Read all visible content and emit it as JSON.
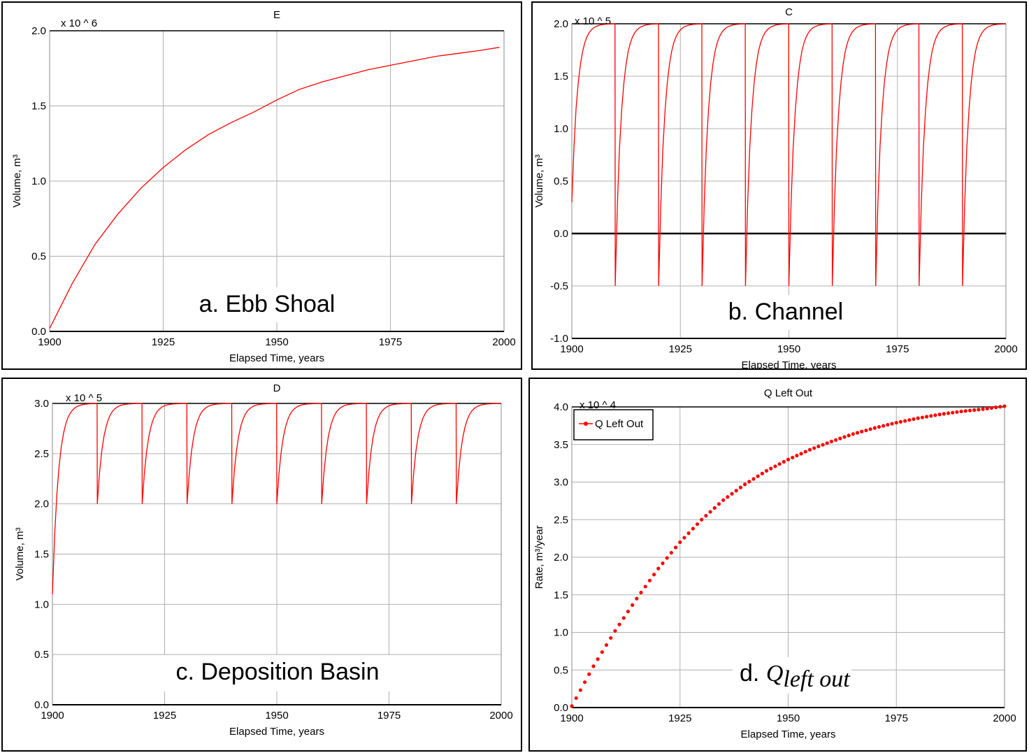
{
  "charts": [
    {
      "id": "a",
      "title": "E",
      "multiplier": "x 10 ^ 6",
      "xlabel": "Elapsed Time, years",
      "ylabel": "Volume, m³",
      "caption": "a. Ebb Shoal",
      "color": "#ff0000",
      "chart_data": {
        "type": "line",
        "title": "E",
        "xlabel": "Elapsed Time, years",
        "ylabel": "Volume, m³",
        "xlim": [
          1900,
          2000
        ],
        "ylim": [
          0.0,
          2.0
        ],
        "xticks": [
          "1900",
          "1925",
          "1950",
          "1975",
          "2000"
        ],
        "yticks": [
          "0.0",
          "0.5",
          "1.0",
          "1.5",
          "2.0"
        ],
        "grid": true,
        "x": [
          1900,
          1905,
          1910,
          1915,
          1920,
          1925,
          1930,
          1935,
          1940,
          1945,
          1950,
          1955,
          1960,
          1965,
          1970,
          1975,
          1980,
          1985,
          1990,
          1995,
          1999
        ],
        "series": [
          {
            "values": [
              0.02,
              0.32,
              0.58,
              0.78,
              0.95,
              1.09,
              1.21,
              1.31,
              1.39,
              1.46,
              1.54,
              1.61,
              1.66,
              1.7,
              1.74,
              1.77,
              1.8,
              1.83,
              1.85,
              1.87,
              1.89
            ]
          }
        ]
      }
    },
    {
      "id": "b",
      "title": "C",
      "multiplier": "x 10 ^ 5",
      "xlabel": "Elapsed Time, years",
      "ylabel": "Volume, m³",
      "caption": "b. Channel",
      "color": "#ff0000",
      "chart_data": {
        "type": "line",
        "title": "C",
        "xlabel": "Elapsed Time, years",
        "ylabel": "Volume, m³",
        "xlim": [
          1900,
          2000
        ],
        "ylim": [
          -1.0,
          2.0
        ],
        "xticks": [
          "1900",
          "1925",
          "1950",
          "1975",
          "2000"
        ],
        "yticks": [
          "-1.0",
          "-0.5",
          "0.0",
          "0.5",
          "1.0",
          "1.5",
          "2.0"
        ],
        "grid": true,
        "zero_line": true,
        "cycle_years": 10,
        "start_value": 0.3,
        "min_value": -0.5,
        "max_value": 2.0,
        "series": [
          {
            "values": []
          }
        ]
      }
    },
    {
      "id": "c",
      "title": "D",
      "multiplier": "x 10 ^ 5",
      "xlabel": "Elapsed Time, years",
      "ylabel": "Volume, m³",
      "caption": "c. Deposition Basin",
      "color": "#ff0000",
      "chart_data": {
        "type": "line",
        "title": "D",
        "xlabel": "Elapsed Time, years",
        "ylabel": "Volume, m³",
        "xlim": [
          1900,
          2000
        ],
        "ylim": [
          0.0,
          3.0
        ],
        "xticks": [
          "1900",
          "1925",
          "1950",
          "1975",
          "2000"
        ],
        "yticks": [
          "0.0",
          "0.5",
          "1.0",
          "1.5",
          "2.0",
          "2.5",
          "3.0"
        ],
        "grid": true,
        "cycle_years": 10,
        "start_value": 1.1,
        "min_value": 2.0,
        "max_value": 3.0,
        "series": [
          {
            "values": []
          }
        ]
      }
    },
    {
      "id": "d",
      "title": "Q Left Out",
      "multiplier": "x 10 ^ 4",
      "xlabel": "Elapsed Time, years",
      "ylabel": "Rate, m³/year",
      "caption_main": "d. ",
      "caption_q": "Q",
      "caption_sub": "left out",
      "legend": "Q Left Out",
      "color": "#ff0000",
      "chart_data": {
        "type": "line",
        "title": "Q Left Out",
        "xlabel": "Elapsed Time, years",
        "ylabel": "Rate, m³/year",
        "xlim": [
          1900,
          2000
        ],
        "ylim": [
          0.0,
          4.0
        ],
        "xticks": [
          "1900",
          "1925",
          "1950",
          "1975",
          "2000"
        ],
        "yticks": [
          "0.0",
          "0.5",
          "1.0",
          "1.5",
          "2.0",
          "2.5",
          "3.0",
          "3.5",
          "4.0"
        ],
        "grid": true,
        "markers": true,
        "legend_position": "top-left",
        "x": [
          1900,
          1905,
          1910,
          1915,
          1920,
          1925,
          1930,
          1935,
          1940,
          1945,
          1950,
          1955,
          1960,
          1965,
          1970,
          1975,
          1980,
          1985,
          1990,
          1995,
          2000
        ],
        "series": [
          {
            "name": "Q Left Out",
            "values": [
              0.02,
              0.55,
              1.02,
              1.45,
              1.85,
              2.2,
              2.5,
              2.76,
              2.97,
              3.15,
              3.3,
              3.43,
              3.54,
              3.64,
              3.72,
              3.79,
              3.85,
              3.9,
              3.94,
              3.97,
              4.01
            ]
          }
        ]
      }
    }
  ]
}
